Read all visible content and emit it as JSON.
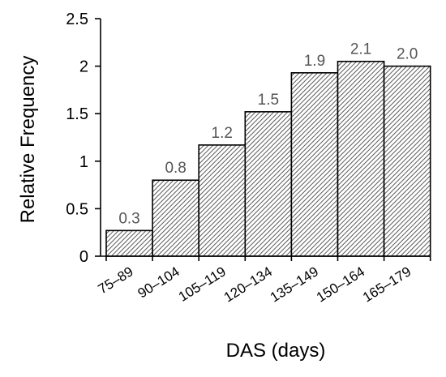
{
  "chart_data": {
    "type": "bar",
    "categories": [
      "75–89",
      "90–104",
      "105–119",
      "120–134",
      "135–149",
      "150–164",
      "165–179"
    ],
    "values": [
      0.27,
      0.8,
      1.17,
      1.52,
      1.93,
      2.05,
      2.0
    ],
    "data_labels": [
      "0.3",
      "0.8",
      "1.2",
      "1.5",
      "1.9",
      "2.1",
      "2.0"
    ],
    "xlabel": "DAS (days)",
    "ylabel": "Relative Frequency",
    "ylim": [
      0,
      2.5
    ],
    "yticks": [
      "0",
      "0.5",
      "1",
      "1.5",
      "2",
      "2.5"
    ],
    "ytick_values": [
      0,
      0.5,
      1,
      1.5,
      2,
      2.5
    ],
    "grid": false,
    "legend": "none",
    "bar_fill": "diagonal-hatch",
    "colors": {
      "bar_stroke": "#000000",
      "hatch": "#555555",
      "data_label": "#555555"
    }
  }
}
